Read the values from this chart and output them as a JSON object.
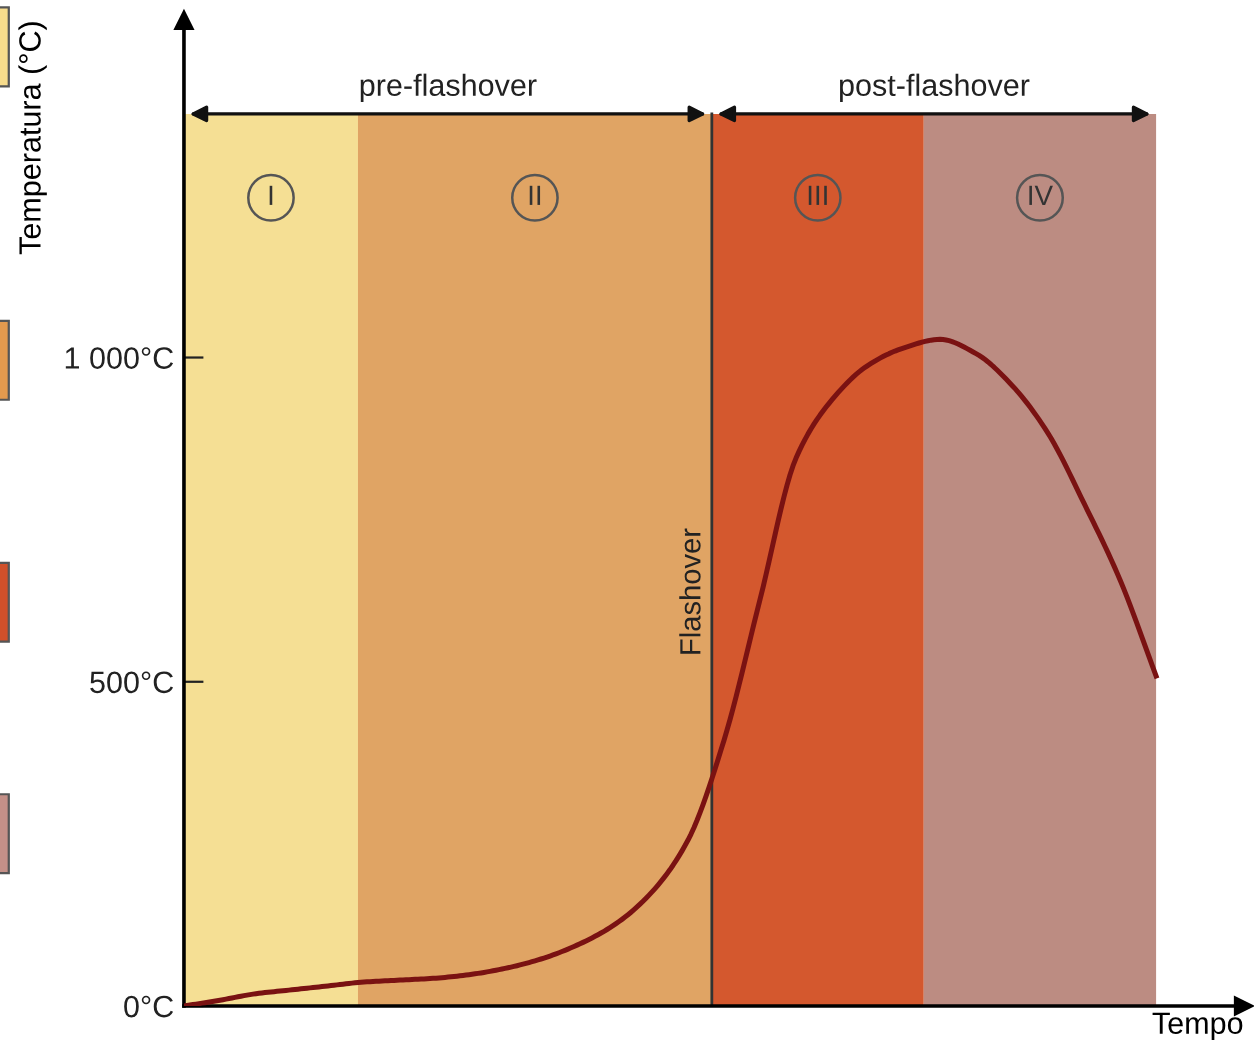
{
  "chart_data": {
    "type": "line",
    "xlabel": "Tempo",
    "ylabel": "Temperatura (°C)",
    "categories": [
      null,
      null,
      null,
      null,
      null,
      null,
      null,
      null,
      null,
      null,
      null,
      null,
      null,
      null,
      null,
      null,
      null,
      null,
      null,
      null,
      null,
      null,
      null,
      null,
      null,
      null,
      null,
      null
    ],
    "series": [
      {
        "color": "#7a1212",
        "values": [
          0,
          9,
          19,
          25,
          31,
          37,
          40,
          43,
          49,
          59,
          74,
          96,
          127,
          176,
          256,
          410,
          627,
          845,
          935,
          988,
          1015,
          1028,
          1006,
          957,
          883,
          775,
          657,
          509
        ]
      }
    ],
    "ylim": [
      0,
      1520
    ],
    "yticks": [
      {
        "value": 0,
        "label": "0°C"
      },
      {
        "value": 500,
        "label": "500°C"
      },
      {
        "value": 1000,
        "label": "1 000°C"
      }
    ],
    "annotations": [
      "pre-flashover",
      "post-flashover",
      "I",
      "II",
      "III",
      "IV",
      "Flashover"
    ],
    "grid": false,
    "marker": "none",
    "line_style": "solid"
  }
}
